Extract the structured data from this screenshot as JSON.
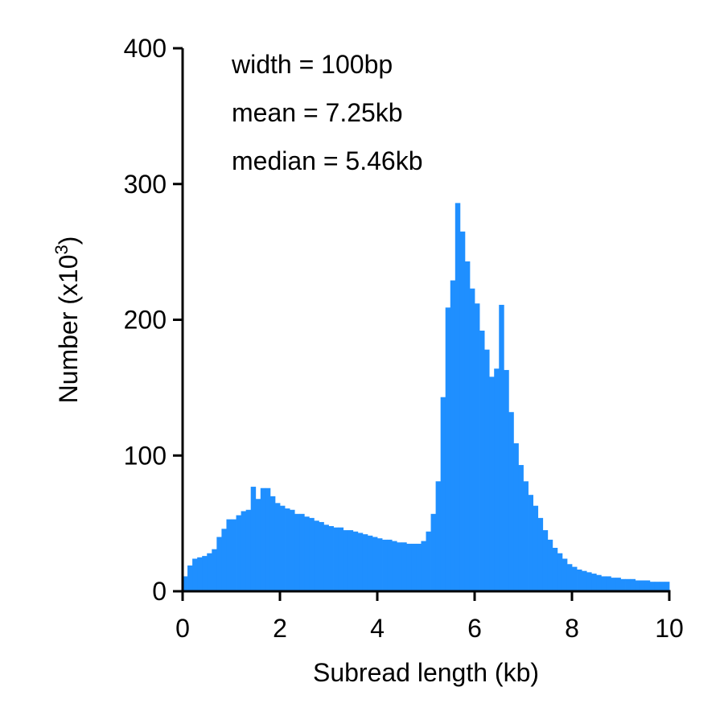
{
  "chart_data": {
    "type": "bar",
    "subtype": "histogram",
    "xlabel": "Subread length (kb)",
    "ylabel": "Number (x10",
    "ylabel_sup": "3",
    "ylabel_close": ")",
    "xlim": [
      0,
      10
    ],
    "ylim": [
      0,
      400
    ],
    "xticks": [
      0,
      2,
      4,
      6,
      8,
      10
    ],
    "yticks": [
      0,
      100,
      200,
      300,
      400
    ],
    "bin_width_kb": 0.1,
    "annotations": [
      "width = 100bp",
      "mean = 7.25kb",
      "median = 5.46kb"
    ],
    "grid": false,
    "legend": "none",
    "color": "#1f8fff",
    "values": [
      11,
      19,
      24,
      25,
      26,
      28,
      31,
      40,
      46,
      53,
      53,
      56,
      59,
      60,
      77,
      68,
      76,
      76,
      70,
      65,
      63,
      61,
      60,
      57,
      57,
      55,
      54,
      52,
      51,
      49,
      48,
      47,
      47,
      45,
      45,
      44,
      43,
      42,
      41,
      40,
      39,
      38,
      38,
      37,
      36,
      36,
      35,
      35,
      35,
      37,
      44,
      57,
      81,
      143,
      209,
      229,
      286,
      265,
      243,
      223,
      212,
      192,
      178,
      158,
      164,
      211,
      163,
      132,
      109,
      93,
      81,
      71,
      63,
      54,
      45,
      38,
      32,
      28,
      24,
      20,
      18,
      16,
      15,
      14,
      13,
      12,
      11,
      11,
      10,
      10,
      9,
      9,
      9,
      8,
      8,
      8,
      7,
      7,
      7,
      7
    ]
  }
}
